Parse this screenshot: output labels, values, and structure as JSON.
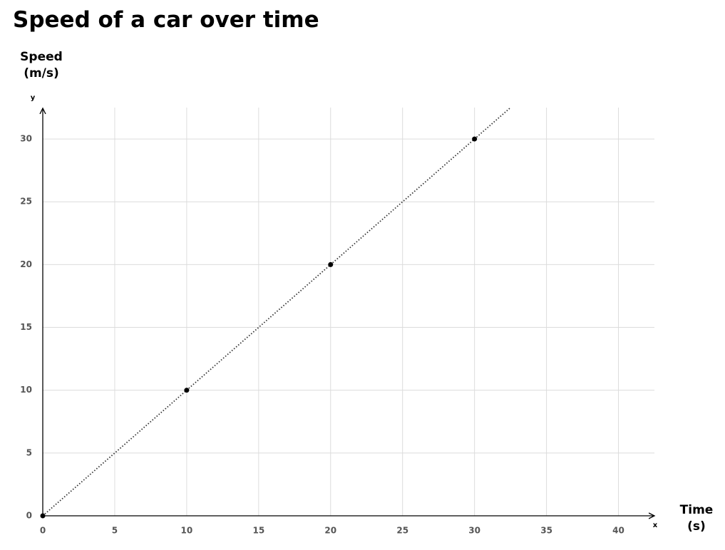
{
  "chart_data": {
    "type": "scatter",
    "title": "Speed of a car over time",
    "ylabel": "Speed (m/s)",
    "xlabel": "Time (s)",
    "x_axis_letter": "x",
    "y_axis_letter": "y",
    "x": [
      0,
      10,
      20,
      30
    ],
    "values": [
      0,
      10,
      20,
      30
    ],
    "color": "#000000",
    "trend_line": {
      "x": [
        0,
        32.5
      ],
      "values": [
        0,
        32.5
      ],
      "color": "#333333"
    },
    "xlim": [
      0,
      42.5
    ],
    "ylim": [
      0,
      32.5
    ],
    "xticks": [
      0,
      5,
      10,
      15,
      20,
      25,
      30,
      35,
      40
    ],
    "yticks": [
      0,
      5,
      10,
      15,
      20,
      25,
      30
    ],
    "grid": true
  }
}
